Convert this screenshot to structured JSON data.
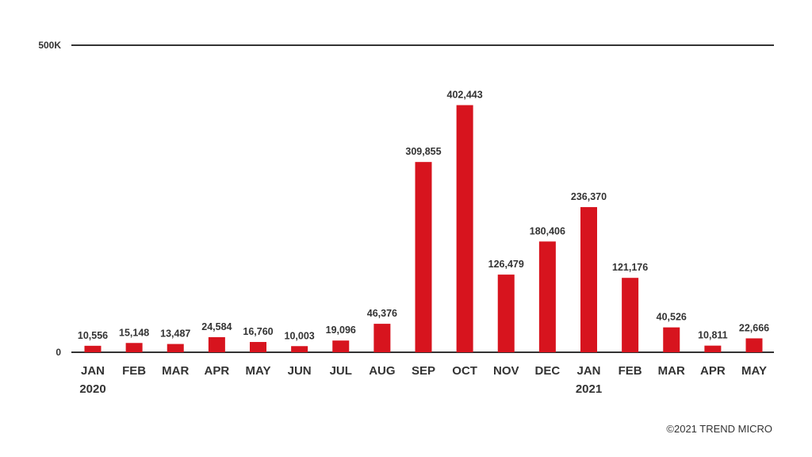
{
  "chart_data": {
    "type": "bar",
    "title": "",
    "xlabel": "",
    "ylabel": "",
    "ylim": [
      0,
      500000
    ],
    "y_ticks": [
      {
        "value": 0,
        "label": "0"
      },
      {
        "value": 500000,
        "label": "500K"
      }
    ],
    "categories": [
      "JAN",
      "FEB",
      "MAR",
      "APR",
      "MAY",
      "JUN",
      "JUL",
      "AUG",
      "SEP",
      "OCT",
      "NOV",
      "DEC",
      "JAN",
      "FEB",
      "MAR",
      "APR",
      "MAY"
    ],
    "year_labels": [
      {
        "index": 0,
        "label": "2020"
      },
      {
        "index": 12,
        "label": "2021"
      }
    ],
    "series": [
      {
        "name": "Count",
        "values": [
          10556,
          15148,
          13487,
          24584,
          16760,
          10003,
          19096,
          46376,
          309855,
          402443,
          126479,
          180406,
          236370,
          121176,
          40526,
          10811,
          22666
        ],
        "value_labels": [
          "10,556",
          "15,148",
          "13,487",
          "24,584",
          "16,760",
          "10,003",
          "19,096",
          "46,376",
          "309,855",
          "402,443",
          "126,479",
          "180,406",
          "236,370",
          "121,176",
          "40,526",
          "10,811",
          "22,666"
        ]
      }
    ],
    "colors": {
      "bar": "#d7141e",
      "axis": "#333333",
      "text": "#333333"
    },
    "grid": false,
    "legend": "none"
  },
  "footer": {
    "copyright": "©2021 TREND MICRO"
  }
}
